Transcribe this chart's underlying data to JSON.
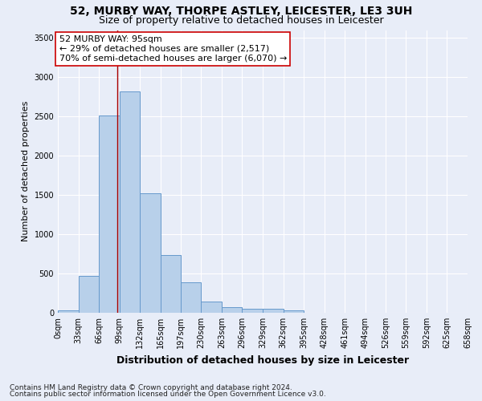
{
  "title_line1": "52, MURBY WAY, THORPE ASTLEY, LEICESTER, LE3 3UH",
  "title_line2": "Size of property relative to detached houses in Leicester",
  "xlabel": "Distribution of detached houses by size in Leicester",
  "ylabel": "Number of detached properties",
  "bar_values": [
    30,
    465,
    2510,
    2820,
    1520,
    740,
    385,
    140,
    75,
    55,
    55,
    30,
    5,
    0,
    0,
    0,
    0,
    0,
    0,
    0
  ],
  "bin_edges": [
    0,
    33,
    66,
    99,
    132,
    165,
    197,
    230,
    263,
    296,
    329,
    362,
    395,
    428,
    461,
    494,
    526,
    559,
    592,
    625,
    658
  ],
  "tick_labels": [
    "0sqm",
    "33sqm",
    "66sqm",
    "99sqm",
    "132sqm",
    "165sqm",
    "197sqm",
    "230sqm",
    "263sqm",
    "296sqm",
    "329sqm",
    "362sqm",
    "395sqm",
    "428sqm",
    "461sqm",
    "494sqm",
    "526sqm",
    "559sqm",
    "592sqm",
    "625sqm",
    "658sqm"
  ],
  "bar_color": "#b8d0ea",
  "bar_edge_color": "#6699cc",
  "vline_x": 95,
  "vline_color": "#aa0000",
  "annotation_text": "52 MURBY WAY: 95sqm\n← 29% of detached houses are smaller (2,517)\n70% of semi-detached houses are larger (6,070) →",
  "annotation_box_color": "#ffffff",
  "annotation_box_edge": "#cc0000",
  "ylim": [
    0,
    3600
  ],
  "yticks": [
    0,
    500,
    1000,
    1500,
    2000,
    2500,
    3000,
    3500
  ],
  "background_color": "#e8edf8",
  "grid_color": "#ffffff",
  "footnote_line1": "Contains HM Land Registry data © Crown copyright and database right 2024.",
  "footnote_line2": "Contains public sector information licensed under the Open Government Licence v3.0.",
  "title_fontsize": 10,
  "subtitle_fontsize": 9,
  "ylabel_fontsize": 8,
  "xlabel_fontsize": 9,
  "tick_fontsize": 7,
  "annotation_fontsize": 8,
  "footnote_fontsize": 6.5
}
